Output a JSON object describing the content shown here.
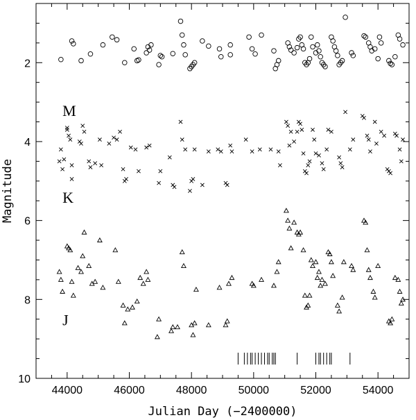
{
  "chart_data": {
    "type": "scatter",
    "xlabel": "Julian Day (−2400000)",
    "ylabel": "Magnitude",
    "xlim": [
      43000,
      55000
    ],
    "ylim": [
      10,
      0.5
    ],
    "y_inverted": true,
    "x_ticks": [
      44000,
      46000,
      48000,
      50000,
      52000,
      54000
    ],
    "y_ticks": [
      2,
      4,
      6,
      8,
      10
    ],
    "grid": false,
    "legend": "none",
    "band_labels": [
      {
        "text": "M",
        "x": 43850,
        "y": 3.35
      },
      {
        "text": "K",
        "x": 43850,
        "y": 5.55
      },
      {
        "text": "J",
        "x": 43850,
        "y": 8.65
      }
    ],
    "series": [
      {
        "name": "M",
        "marker": "circle",
        "points": [
          [
            43800,
            1.92
          ],
          [
            44150,
            1.45
          ],
          [
            44200,
            1.52
          ],
          [
            44450,
            1.95
          ],
          [
            44750,
            1.78
          ],
          [
            45150,
            1.55
          ],
          [
            45450,
            1.35
          ],
          [
            45600,
            1.42
          ],
          [
            45850,
            2.0
          ],
          [
            46150,
            1.65
          ],
          [
            46250,
            1.95
          ],
          [
            46300,
            1.93
          ],
          [
            46550,
            1.75
          ],
          [
            46600,
            1.6
          ],
          [
            46650,
            1.68
          ],
          [
            46700,
            1.55
          ],
          [
            46950,
            2.05
          ],
          [
            47000,
            1.82
          ],
          [
            47050,
            1.85
          ],
          [
            47400,
            1.77
          ],
          [
            47650,
            0.95
          ],
          [
            47700,
            1.3
          ],
          [
            47750,
            1.55
          ],
          [
            47800,
            1.8
          ],
          [
            47950,
            2.15
          ],
          [
            48000,
            2.1
          ],
          [
            48050,
            2.05
          ],
          [
            48100,
            2.0
          ],
          [
            48350,
            1.45
          ],
          [
            48550,
            1.58
          ],
          [
            48900,
            1.65
          ],
          [
            48950,
            1.85
          ],
          [
            49250,
            1.8
          ],
          [
            49250,
            1.55
          ],
          [
            49850,
            1.35
          ],
          [
            49950,
            1.65
          ],
          [
            50050,
            1.78
          ],
          [
            50250,
            1.3
          ],
          [
            50650,
            1.7
          ],
          [
            50700,
            2.15
          ],
          [
            50750,
            2.05
          ],
          [
            50800,
            1.95
          ],
          [
            51100,
            1.5
          ],
          [
            51150,
            1.6
          ],
          [
            51200,
            1.68
          ],
          [
            51300,
            1.75
          ],
          [
            51400,
            1.62
          ],
          [
            51450,
            1.4
          ],
          [
            51500,
            1.35
          ],
          [
            51550,
            1.55
          ],
          [
            51600,
            1.65
          ],
          [
            51650,
            2.0
          ],
          [
            51700,
            2.05
          ],
          [
            51750,
            2.0
          ],
          [
            51800,
            1.9
          ],
          [
            51850,
            1.35
          ],
          [
            51900,
            1.6
          ],
          [
            52000,
            1.75
          ],
          [
            52050,
            1.55
          ],
          [
            52100,
            1.7
          ],
          [
            52150,
            1.85
          ],
          [
            52200,
            2.0
          ],
          [
            52250,
            2.05
          ],
          [
            52300,
            2.1
          ],
          [
            52500,
            1.35
          ],
          [
            52550,
            1.45
          ],
          [
            52600,
            1.6
          ],
          [
            52650,
            1.7
          ],
          [
            52700,
            1.82
          ],
          [
            52750,
            2.05
          ],
          [
            52800,
            2.0
          ],
          [
            52850,
            1.95
          ],
          [
            52950,
            0.85
          ],
          [
            53150,
            1.75
          ],
          [
            53200,
            1.82
          ],
          [
            53550,
            1.32
          ],
          [
            53600,
            1.35
          ],
          [
            53700,
            1.5
          ],
          [
            53750,
            1.6
          ],
          [
            53800,
            1.7
          ],
          [
            53900,
            1.65
          ],
          [
            54000,
            1.9
          ],
          [
            54050,
            1.35
          ],
          [
            54100,
            1.5
          ],
          [
            54350,
            1.95
          ],
          [
            54400,
            2.02
          ],
          [
            54450,
            2.05
          ],
          [
            54550,
            1.85
          ],
          [
            54650,
            1.3
          ],
          [
            54700,
            1.4
          ],
          [
            54800,
            1.55
          ]
        ]
      },
      {
        "name": "K",
        "marker": "x",
        "points": [
          [
            43750,
            4.5
          ],
          [
            43800,
            4.2
          ],
          [
            43850,
            4.7
          ],
          [
            43900,
            4.45
          ],
          [
            44000,
            3.7
          ],
          [
            44000,
            3.65
          ],
          [
            44050,
            3.85
          ],
          [
            44100,
            3.95
          ],
          [
            44150,
            4.6
          ],
          [
            44150,
            4.95
          ],
          [
            44400,
            4.0
          ],
          [
            44450,
            4.05
          ],
          [
            44500,
            3.6
          ],
          [
            44550,
            3.75
          ],
          [
            44700,
            4.5
          ],
          [
            44750,
            4.65
          ],
          [
            44900,
            4.55
          ],
          [
            45050,
            3.95
          ],
          [
            45100,
            4.6
          ],
          [
            45350,
            4.05
          ],
          [
            45500,
            3.9
          ],
          [
            45600,
            3.95
          ],
          [
            45700,
            3.75
          ],
          [
            45800,
            4.7
          ],
          [
            45850,
            5.0
          ],
          [
            45900,
            4.95
          ],
          [
            46050,
            4.15
          ],
          [
            46200,
            4.2
          ],
          [
            46300,
            4.75
          ],
          [
            46550,
            4.15
          ],
          [
            46650,
            4.1
          ],
          [
            46950,
            5.05
          ],
          [
            47000,
            4.75
          ],
          [
            47300,
            4.4
          ],
          [
            47400,
            5.1
          ],
          [
            47450,
            5.15
          ],
          [
            47650,
            3.5
          ],
          [
            47700,
            3.95
          ],
          [
            47800,
            4.2
          ],
          [
            47950,
            5.25
          ],
          [
            48000,
            5.0
          ],
          [
            48050,
            4.95
          ],
          [
            48100,
            4.2
          ],
          [
            48350,
            5.1
          ],
          [
            48550,
            4.25
          ],
          [
            48850,
            4.2
          ],
          [
            48950,
            4.25
          ],
          [
            49100,
            5.05
          ],
          [
            49150,
            5.1
          ],
          [
            49250,
            4.1
          ],
          [
            49300,
            4.25
          ],
          [
            49750,
            3.95
          ],
          [
            49950,
            4.25
          ],
          [
            50200,
            4.2
          ],
          [
            50550,
            4.2
          ],
          [
            50800,
            4.25
          ],
          [
            50850,
            4.6
          ],
          [
            51050,
            3.5
          ],
          [
            51100,
            3.6
          ],
          [
            51150,
            4.1
          ],
          [
            51200,
            3.75
          ],
          [
            51300,
            4.0
          ],
          [
            51400,
            3.75
          ],
          [
            51450,
            3.5
          ],
          [
            51500,
            3.55
          ],
          [
            51550,
            3.7
          ],
          [
            51600,
            4.3
          ],
          [
            51650,
            4.75
          ],
          [
            51700,
            4.8
          ],
          [
            51750,
            4.6
          ],
          [
            51800,
            4.5
          ],
          [
            51900,
            3.7
          ],
          [
            51950,
            3.95
          ],
          [
            52000,
            4.3
          ],
          [
            52100,
            4.35
          ],
          [
            52200,
            4.55
          ],
          [
            52250,
            4.7
          ],
          [
            52350,
            4.2
          ],
          [
            52400,
            3.7
          ],
          [
            52500,
            3.75
          ],
          [
            52750,
            4.4
          ],
          [
            52800,
            4.55
          ],
          [
            52850,
            4.65
          ],
          [
            52950,
            3.25
          ],
          [
            53100,
            4.2
          ],
          [
            53200,
            3.95
          ],
          [
            53500,
            3.35
          ],
          [
            53550,
            3.4
          ],
          [
            53650,
            3.85
          ],
          [
            53700,
            3.95
          ],
          [
            53750,
            4.25
          ],
          [
            53900,
            3.5
          ],
          [
            53950,
            4.05
          ],
          [
            54100,
            3.75
          ],
          [
            54200,
            3.85
          ],
          [
            54300,
            4.7
          ],
          [
            54350,
            4.75
          ],
          [
            54400,
            4.8
          ],
          [
            54550,
            3.8
          ],
          [
            54600,
            3.85
          ],
          [
            54700,
            4.2
          ],
          [
            54750,
            4.5
          ],
          [
            54800,
            3.95
          ]
        ]
      },
      {
        "name": "J",
        "marker": "triangle",
        "points": [
          [
            43750,
            7.3
          ],
          [
            43800,
            7.5
          ],
          [
            43850,
            7.8
          ],
          [
            44000,
            6.65
          ],
          [
            44050,
            6.7
          ],
          [
            44100,
            6.75
          ],
          [
            44150,
            7.55
          ],
          [
            44200,
            7.9
          ],
          [
            44350,
            7.2
          ],
          [
            44450,
            7.3
          ],
          [
            44500,
            6.9
          ],
          [
            44550,
            6.3
          ],
          [
            44700,
            7.15
          ],
          [
            44800,
            7.6
          ],
          [
            44900,
            7.55
          ],
          [
            45050,
            6.5
          ],
          [
            45150,
            7.7
          ],
          [
            45550,
            6.75
          ],
          [
            45650,
            7.55
          ],
          [
            45800,
            8.15
          ],
          [
            45850,
            8.6
          ],
          [
            45950,
            8.25
          ],
          [
            46100,
            8.2
          ],
          [
            46250,
            8.05
          ],
          [
            46350,
            7.45
          ],
          [
            46450,
            7.6
          ],
          [
            46550,
            7.3
          ],
          [
            46600,
            7.5
          ],
          [
            46900,
            8.95
          ],
          [
            46950,
            8.5
          ],
          [
            47350,
            8.8
          ],
          [
            47400,
            8.7
          ],
          [
            47550,
            8.7
          ],
          [
            47700,
            6.8
          ],
          [
            47750,
            7.15
          ],
          [
            48000,
            8.65
          ],
          [
            48050,
            8.9
          ],
          [
            48100,
            8.6
          ],
          [
            48150,
            7.75
          ],
          [
            48550,
            8.65
          ],
          [
            48900,
            7.7
          ],
          [
            49100,
            8.65
          ],
          [
            49150,
            8.55
          ],
          [
            49200,
            7.6
          ],
          [
            49300,
            7.45
          ],
          [
            49950,
            7.6
          ],
          [
            50000,
            7.65
          ],
          [
            50250,
            7.5
          ],
          [
            50650,
            7.65
          ],
          [
            50750,
            7.3
          ],
          [
            50800,
            7.05
          ],
          [
            51050,
            5.75
          ],
          [
            51100,
            6.0
          ],
          [
            51150,
            6.2
          ],
          [
            51200,
            6.7
          ],
          [
            51300,
            6.05
          ],
          [
            51400,
            6.3
          ],
          [
            51450,
            6.35
          ],
          [
            51500,
            6.3
          ],
          [
            51600,
            6.75
          ],
          [
            51650,
            7.9
          ],
          [
            51700,
            8.2
          ],
          [
            51750,
            8.15
          ],
          [
            51800,
            7.9
          ],
          [
            51850,
            7.0
          ],
          [
            51900,
            7.15
          ],
          [
            52000,
            7.05
          ],
          [
            52050,
            7.45
          ],
          [
            52100,
            7.3
          ],
          [
            52150,
            7.65
          ],
          [
            52200,
            7.5
          ],
          [
            52300,
            7.6
          ],
          [
            52400,
            6.8
          ],
          [
            52450,
            6.85
          ],
          [
            52500,
            7.05
          ],
          [
            52550,
            7.4
          ],
          [
            52700,
            8.15
          ],
          [
            52750,
            8.3
          ],
          [
            52850,
            7.95
          ],
          [
            52900,
            7.05
          ],
          [
            53150,
            7.15
          ],
          [
            53200,
            7.25
          ],
          [
            53550,
            6.0
          ],
          [
            53600,
            6.05
          ],
          [
            53650,
            6.75
          ],
          [
            53700,
            7.25
          ],
          [
            53750,
            7.45
          ],
          [
            53850,
            7.8
          ],
          [
            53900,
            7.95
          ],
          [
            54000,
            7.15
          ],
          [
            54350,
            8.55
          ],
          [
            54400,
            8.6
          ],
          [
            54450,
            8.5
          ],
          [
            54550,
            7.45
          ],
          [
            54650,
            7.5
          ],
          [
            54700,
            7.8
          ],
          [
            54800,
            8.0
          ],
          [
            54750,
            8.1
          ]
        ]
      }
    ],
    "observation_ticks": {
      "y_top": 9.35,
      "y_bottom": 9.65,
      "x": [
        49500,
        49700,
        49800,
        49900,
        49950,
        50050,
        50150,
        50250,
        50350,
        50450,
        50500,
        50600,
        50650,
        50700,
        51400,
        52000,
        52100,
        52150,
        52250,
        52350,
        52450,
        52500,
        53100
      ]
    }
  }
}
